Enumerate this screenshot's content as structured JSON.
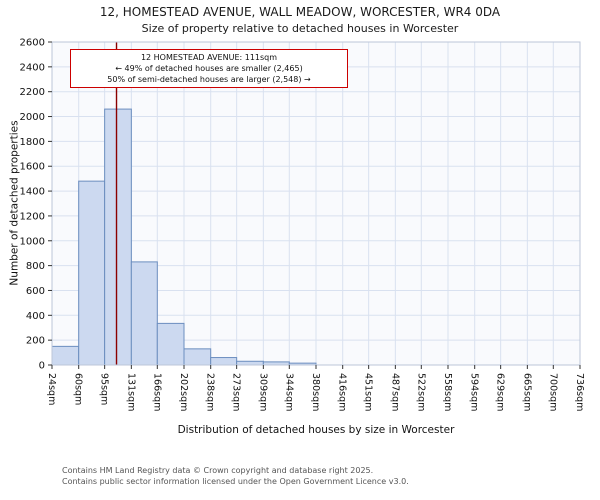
{
  "footer": {
    "line1": "Contains HM Land Registry data © Crown copyright and database right 2025.",
    "line2": "Contains public sector information licensed under the Open Government Licence v3.0."
  },
  "chart_data": {
    "type": "bar",
    "title": "12, HOMESTEAD AVENUE, WALL MEADOW, WORCESTER, WR4 0DA",
    "subtitle": "Size of property relative to detached houses in Worcester",
    "xlabel": "Distribution of detached houses by size in Worcester",
    "ylabel": "Number of detached properties",
    "ylim": [
      0,
      2600
    ],
    "yticks": [
      0,
      200,
      400,
      600,
      800,
      1000,
      1200,
      1400,
      1600,
      1800,
      2000,
      2200,
      2400,
      2600
    ],
    "bin_edges_sqm": [
      24,
      60,
      95,
      131,
      166,
      202,
      238,
      273,
      309,
      344,
      380,
      416,
      451,
      487,
      522,
      558,
      594,
      629,
      665,
      700,
      736
    ],
    "x_tick_labels": [
      "24sqm",
      "60sqm",
      "95sqm",
      "131sqm",
      "166sqm",
      "202sqm",
      "238sqm",
      "273sqm",
      "309sqm",
      "344sqm",
      "380sqm",
      "416sqm",
      "451sqm",
      "487sqm",
      "522sqm",
      "558sqm",
      "594sqm",
      "629sqm",
      "665sqm",
      "700sqm",
      "736sqm"
    ],
    "counts": [
      150,
      1480,
      2060,
      830,
      335,
      130,
      60,
      30,
      25,
      15,
      0,
      0,
      0,
      0,
      0,
      0,
      0,
      0,
      0,
      0
    ],
    "property_line_sqm": 111,
    "annotation": {
      "line1": "12 HOMESTEAD AVENUE: 111sqm",
      "line2": "← 49% of detached houses are smaller (2,465)",
      "line3": "50% of semi-detached houses are larger (2,548) →"
    },
    "grid": true,
    "legend": false,
    "colors": {
      "bar_fill": "#ccd9f0",
      "bar_edge": "#6c8ebf",
      "property_line": "#8b0000",
      "annotation_border": "#cc0000",
      "grid": "#d9e1f0",
      "plot_bg": "#f9fafd",
      "spine": "#bcc6d8",
      "tick": "#333333",
      "text": "#111111",
      "footer_text": "#555555"
    }
  }
}
